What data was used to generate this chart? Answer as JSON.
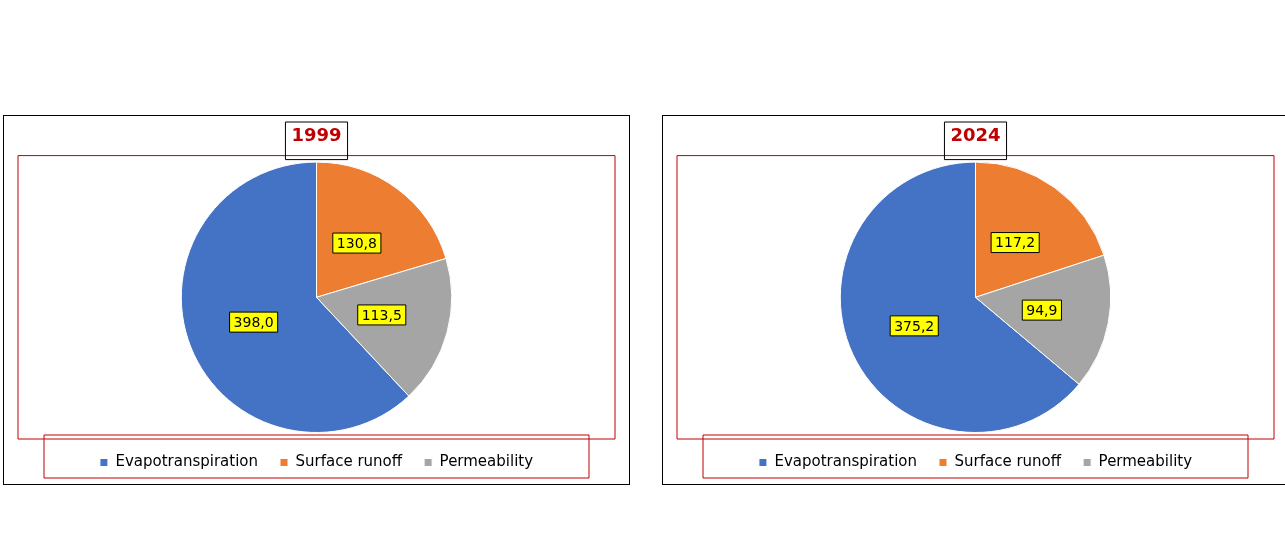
{
  "chart_data": [
    {
      "type": "pie",
      "title": "1999",
      "categories": [
        "Evapotranspiration",
        "Surface runoff",
        "Permeability"
      ],
      "values": [
        398.0,
        130.8,
        113.5
      ],
      "colors": [
        "#4472c4",
        "#ed7d31",
        "#a5a5a5"
      ],
      "value_labels": [
        "398,0",
        "130,8",
        "113,5"
      ],
      "legend": "bottom"
    },
    {
      "type": "pie",
      "title": "2024",
      "categories": [
        "Evapotranspiration",
        "Surface runoff",
        "Permeability"
      ],
      "values": [
        375.2,
        117.2,
        94.9
      ],
      "colors": [
        "#4472c4",
        "#ed7d31",
        "#a5a5a5"
      ],
      "value_labels": [
        "375,2",
        "117,2",
        "94,9"
      ],
      "legend": "bottom"
    }
  ]
}
